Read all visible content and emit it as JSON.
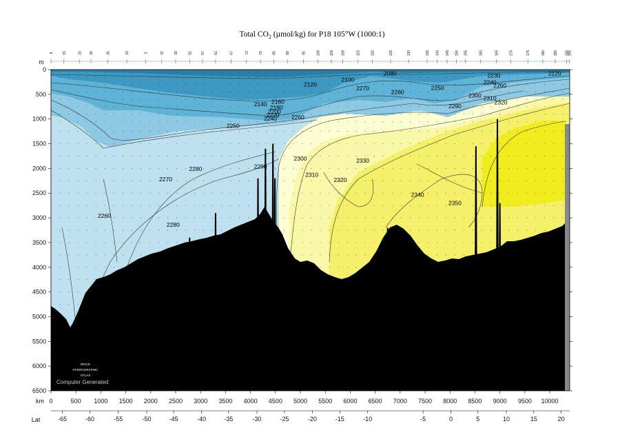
{
  "chart_data": {
    "type": "heatmap",
    "title": "Total CO₂ (µmol/kg) for P18 105°W (1000:1)",
    "title_parts": {
      "pre": "Total CO",
      "sub": "2",
      "post": " (µmol/kg) for P18 105°W (1000:1)"
    },
    "xlabel": "km",
    "ylabel": "m",
    "lat_label": "Lat",
    "xlim": [
      0,
      10400
    ],
    "ylim": [
      6500,
      0
    ],
    "x_ticks": [
      0,
      500,
      1000,
      1500,
      2000,
      2500,
      3000,
      3500,
      4000,
      4500,
      5000,
      5500,
      6000,
      6500,
      7000,
      7500,
      8000,
      8500,
      9000,
      9500,
      10000
    ],
    "y_ticks": [
      0,
      500,
      1000,
      1500,
      2000,
      2500,
      3000,
      3500,
      4000,
      4500,
      5000,
      5500,
      6000,
      6500
    ],
    "lat_ticks": [
      {
        "lat": "-65",
        "km": 230
      },
      {
        "lat": "-60",
        "km": 780
      },
      {
        "lat": "-55",
        "km": 1350
      },
      {
        "lat": "-50",
        "km": 1920
      },
      {
        "lat": "-45",
        "km": 2460
      },
      {
        "lat": "-40",
        "km": 3020
      },
      {
        "lat": "-35",
        "km": 3560
      },
      {
        "lat": "-30",
        "km": 4130
      },
      {
        "lat": "-25",
        "km": 4680
      },
      {
        "lat": "-20",
        "km": 5240
      },
      {
        "lat": "-15",
        "km": 5790
      },
      {
        "lat": "-10",
        "km": 6350
      },
      {
        "lat": "-5",
        "km": 7460
      },
      {
        "lat": "0",
        "km": 8020
      },
      {
        "lat": "5",
        "km": 8560
      },
      {
        "lat": "10",
        "km": 9130
      },
      {
        "lat": "15",
        "km": 9680
      },
      {
        "lat": "20",
        "km": 10230
      }
    ],
    "stations": [
      {
        "label": "9",
        "km": 0
      },
      {
        "label": "15",
        "km": 260
      },
      {
        "label": "23",
        "km": 570
      },
      {
        "label": "28",
        "km": 800
      },
      {
        "label": "36",
        "km": 1140
      },
      {
        "label": "33",
        "km": 1520
      },
      {
        "label": "3",
        "km": 1900
      },
      {
        "label": "42",
        "km": 2220
      },
      {
        "label": "39",
        "km": 2500
      },
      {
        "label": "51",
        "km": 2780
      },
      {
        "label": "57",
        "km": 3040
      },
      {
        "label": "61",
        "km": 3300
      },
      {
        "label": "67",
        "km": 3610
      },
      {
        "label": "73",
        "km": 3920
      },
      {
        "label": "79",
        "km": 4200
      },
      {
        "label": "85",
        "km": 4470
      },
      {
        "label": "89",
        "km": 4740
      },
      {
        "label": "95",
        "km": 5060
      },
      {
        "label": "100",
        "km": 5350
      },
      {
        "label": "105",
        "km": 5620
      },
      {
        "label": "109",
        "km": 5850
      },
      {
        "label": "115",
        "km": 6150
      },
      {
        "label": "120",
        "km": 6440
      },
      {
        "label": "125",
        "km": 6810
      },
      {
        "label": "130",
        "km": 7170
      },
      {
        "label": "135",
        "km": 7540
      },
      {
        "label": "140",
        "km": 7740
      },
      {
        "label": "145",
        "km": 7940
      },
      {
        "label": "150",
        "km": 8130
      },
      {
        "label": "155",
        "km": 8310
      },
      {
        "label": "160",
        "km": 8610
      },
      {
        "label": "165",
        "km": 8930
      },
      {
        "label": "170",
        "km": 9220
      },
      {
        "label": "175",
        "km": 9560
      },
      {
        "label": "180",
        "km": 9860
      },
      {
        "label": "185",
        "km": 10110
      },
      {
        "label": "190",
        "km": 10340
      },
      {
        "label": "195",
        "km": 10390
      }
    ],
    "color_scale": [
      {
        "range": "< 2050",
        "color": "#2a7fa6"
      },
      {
        "range": "2050-2150",
        "color": "#3d99c2"
      },
      {
        "range": "2150-2230",
        "color": "#5fb3d6"
      },
      {
        "range": "2230-2260",
        "color": "#8ec9e3"
      },
      {
        "range": "2260-2290",
        "color": "#bfe0ee"
      },
      {
        "range": "2290-2310",
        "color": "#fdfdd2"
      },
      {
        "range": "2310-2330",
        "color": "#f9f7a8"
      },
      {
        "range": "2330-2345",
        "color": "#f5f06a"
      },
      {
        "range": "> 2345",
        "color": "#f1ec1e"
      },
      {
        "range": "bottom",
        "color": "#000000"
      }
    ],
    "contour_labels": [
      {
        "value": "2080",
        "x": 6800,
        "y": 80
      },
      {
        "value": "2100",
        "x": 5950,
        "y": 200
      },
      {
        "value": "2120",
        "x": 5200,
        "y": 300
      },
      {
        "value": "2120",
        "x": 10100,
        "y": 80
      },
      {
        "value": "2140",
        "x": 4200,
        "y": 700
      },
      {
        "value": "2160",
        "x": 4550,
        "y": 650
      },
      {
        "value": "2180",
        "x": 4520,
        "y": 770
      },
      {
        "value": "2200",
        "x": 4480,
        "y": 850
      },
      {
        "value": "2220",
        "x": 4450,
        "y": 920
      },
      {
        "value": "2240",
        "x": 4400,
        "y": 990
      },
      {
        "value": "2250",
        "x": 3650,
        "y": 1140
      },
      {
        "value": "2260",
        "x": 4950,
        "y": 960
      },
      {
        "value": "2270",
        "x": 6250,
        "y": 380
      },
      {
        "value": "2260",
        "x": 6950,
        "y": 450
      },
      {
        "value": "2250",
        "x": 7750,
        "y": 370
      },
      {
        "value": "2240",
        "x": 8800,
        "y": 260
      },
      {
        "value": "2260",
        "x": 9000,
        "y": 320
      },
      {
        "value": "2230",
        "x": 8880,
        "y": 120
      },
      {
        "value": "2300",
        "x": 8500,
        "y": 520
      },
      {
        "value": "2310",
        "x": 8800,
        "y": 580
      },
      {
        "value": "2320",
        "x": 9020,
        "y": 660
      },
      {
        "value": "2290",
        "x": 8100,
        "y": 740
      },
      {
        "value": "2290",
        "x": 4200,
        "y": 1960
      },
      {
        "value": "2300",
        "x": 5000,
        "y": 1800
      },
      {
        "value": "2310",
        "x": 5230,
        "y": 2130
      },
      {
        "value": "2320",
        "x": 5800,
        "y": 2230
      },
      {
        "value": "2330",
        "x": 6250,
        "y": 1840
      },
      {
        "value": "2340",
        "x": 7350,
        "y": 2530
      },
      {
        "value": "2350",
        "x": 8100,
        "y": 2700
      },
      {
        "value": "2270",
        "x": 2300,
        "y": 2220
      },
      {
        "value": "2280",
        "x": 2900,
        "y": 2010
      },
      {
        "value": "2260",
        "x": 1070,
        "y": 2960
      },
      {
        "value": "2280",
        "x": 2450,
        "y": 3140
      },
      {
        "value": "2260",
        "x": 870,
        "y": 4590
      }
    ],
    "watermark": [
      "WOCE",
      "HYDROGRAPHIC",
      "ATLAS"
    ],
    "credit": "Computer Generated"
  }
}
